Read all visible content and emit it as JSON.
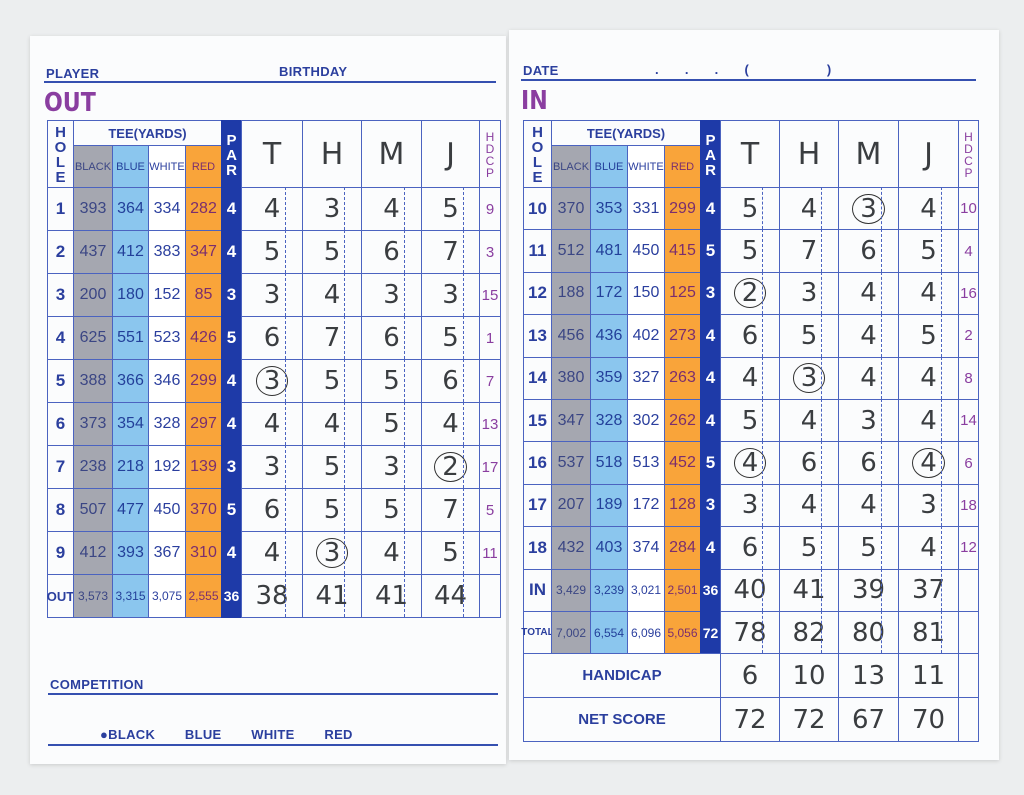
{
  "left": {
    "player_label": "PLAYER",
    "birthday_label": "BIRTHDAY",
    "section_title": "OUT",
    "competition_label": "COMPETITION",
    "tees_legend": {
      "dot": "●",
      "items": [
        "BLACK",
        "BLUE",
        "WHITE",
        "RED"
      ]
    }
  },
  "right": {
    "date_label": "DATE",
    "date_format": ". . . (   )",
    "section_title": "IN",
    "handicap_label": "HANDICAP",
    "net_label": "NET SCORE"
  },
  "headers": {
    "hole": "HOLE",
    "tee": "TEE(YARDS)",
    "tees": [
      "BLACK",
      "BLUE",
      "WHITE",
      "RED"
    ],
    "par": "PAR",
    "hdcp": "HDCP"
  },
  "players": [
    "T",
    "H",
    "M",
    "J"
  ],
  "front": [
    {
      "hole": "1",
      "yards": [
        "393",
        "364",
        "334",
        "282"
      ],
      "par": "4",
      "scores": [
        "4",
        "3",
        "4",
        "5"
      ],
      "circled": [
        false,
        false,
        false,
        false
      ],
      "hdcp": "9"
    },
    {
      "hole": "2",
      "yards": [
        "437",
        "412",
        "383",
        "347"
      ],
      "par": "4",
      "scores": [
        "5",
        "5",
        "6",
        "7"
      ],
      "circled": [
        false,
        false,
        false,
        false
      ],
      "hdcp": "3"
    },
    {
      "hole": "3",
      "yards": [
        "200",
        "180",
        "152",
        "85"
      ],
      "par": "3",
      "scores": [
        "3",
        "4",
        "3",
        "3"
      ],
      "circled": [
        false,
        false,
        false,
        false
      ],
      "hdcp": "15"
    },
    {
      "hole": "4",
      "yards": [
        "625",
        "551",
        "523",
        "426"
      ],
      "par": "5",
      "scores": [
        "6",
        "7",
        "6",
        "5"
      ],
      "circled": [
        false,
        false,
        false,
        false
      ],
      "hdcp": "1"
    },
    {
      "hole": "5",
      "yards": [
        "388",
        "366",
        "346",
        "299"
      ],
      "par": "4",
      "scores": [
        "3",
        "5",
        "5",
        "6"
      ],
      "circled": [
        true,
        false,
        false,
        false
      ],
      "hdcp": "7"
    },
    {
      "hole": "6",
      "yards": [
        "373",
        "354",
        "328",
        "297"
      ],
      "par": "4",
      "scores": [
        "4",
        "4",
        "5",
        "4"
      ],
      "circled": [
        false,
        false,
        false,
        false
      ],
      "hdcp": "13"
    },
    {
      "hole": "7",
      "yards": [
        "238",
        "218",
        "192",
        "139"
      ],
      "par": "3",
      "scores": [
        "3",
        "5",
        "3",
        "2"
      ],
      "circled": [
        false,
        false,
        false,
        true
      ],
      "hdcp": "17"
    },
    {
      "hole": "8",
      "yards": [
        "507",
        "477",
        "450",
        "370"
      ],
      "par": "5",
      "scores": [
        "6",
        "5",
        "5",
        "7"
      ],
      "circled": [
        false,
        false,
        false,
        false
      ],
      "hdcp": "5"
    },
    {
      "hole": "9",
      "yards": [
        "412",
        "393",
        "367",
        "310"
      ],
      "par": "4",
      "scores": [
        "4",
        "3",
        "4",
        "5"
      ],
      "circled": [
        false,
        true,
        false,
        false
      ],
      "hdcp": "11"
    },
    {
      "hole": "OUT",
      "yards": [
        "3,573",
        "3,315",
        "3,075",
        "2,555"
      ],
      "par": "36",
      "scores": [
        "38",
        "41",
        "41",
        "44"
      ],
      "circled": [
        false,
        false,
        false,
        false
      ],
      "hdcp": ""
    }
  ],
  "back": [
    {
      "hole": "10",
      "yards": [
        "370",
        "353",
        "331",
        "299"
      ],
      "par": "4",
      "scores": [
        "5",
        "4",
        "3",
        "4"
      ],
      "circled": [
        false,
        false,
        true,
        false
      ],
      "hdcp": "10"
    },
    {
      "hole": "11",
      "yards": [
        "512",
        "481",
        "450",
        "415"
      ],
      "par": "5",
      "scores": [
        "5",
        "7",
        "6",
        "5"
      ],
      "circled": [
        false,
        false,
        false,
        false
      ],
      "hdcp": "4"
    },
    {
      "hole": "12",
      "yards": [
        "188",
        "172",
        "150",
        "125"
      ],
      "par": "3",
      "scores": [
        "2",
        "3",
        "4",
        "4"
      ],
      "circled": [
        true,
        false,
        false,
        false
      ],
      "hdcp": "16"
    },
    {
      "hole": "13",
      "yards": [
        "456",
        "436",
        "402",
        "273"
      ],
      "par": "4",
      "scores": [
        "6",
        "5",
        "4",
        "5"
      ],
      "circled": [
        false,
        false,
        false,
        false
      ],
      "hdcp": "2"
    },
    {
      "hole": "14",
      "yards": [
        "380",
        "359",
        "327",
        "263"
      ],
      "par": "4",
      "scores": [
        "4",
        "3",
        "4",
        "4"
      ],
      "circled": [
        false,
        true,
        false,
        false
      ],
      "hdcp": "8"
    },
    {
      "hole": "15",
      "yards": [
        "347",
        "328",
        "302",
        "262"
      ],
      "par": "4",
      "scores": [
        "5",
        "4",
        "3",
        "4"
      ],
      "circled": [
        false,
        false,
        false,
        false
      ],
      "hdcp": "14"
    },
    {
      "hole": "16",
      "yards": [
        "537",
        "518",
        "513",
        "452"
      ],
      "par": "5",
      "scores": [
        "4",
        "6",
        "6",
        "4"
      ],
      "circled": [
        true,
        false,
        false,
        true
      ],
      "hdcp": "6"
    },
    {
      "hole": "17",
      "yards": [
        "207",
        "189",
        "172",
        "128"
      ],
      "par": "3",
      "scores": [
        "3",
        "4",
        "4",
        "3"
      ],
      "circled": [
        false,
        false,
        false,
        false
      ],
      "hdcp": "18"
    },
    {
      "hole": "18",
      "yards": [
        "432",
        "403",
        "374",
        "284"
      ],
      "par": "4",
      "scores": [
        "6",
        "5",
        "5",
        "4"
      ],
      "circled": [
        false,
        false,
        false,
        false
      ],
      "hdcp": "12"
    },
    {
      "hole": "IN",
      "yards": [
        "3,429",
        "3,239",
        "3,021",
        "2,501"
      ],
      "par": "36",
      "scores": [
        "40",
        "41",
        "39",
        "37"
      ],
      "circled": [
        false,
        false,
        false,
        false
      ],
      "hdcp": ""
    },
    {
      "hole": "TOTAL",
      "yards": [
        "7,002",
        "6,554",
        "6,096",
        "5,056"
      ],
      "par": "72",
      "scores": [
        "78",
        "82",
        "80",
        "81"
      ],
      "circled": [
        false,
        false,
        false,
        false
      ],
      "hdcp": ""
    }
  ],
  "handicaps": [
    "6",
    "10",
    "13",
    "11"
  ],
  "net_scores": [
    "72",
    "72",
    "67",
    "70"
  ],
  "colors": {
    "ink": "#2b3f9e",
    "accent": "#8a3ea0",
    "black_tee": "#a5a7b0",
    "blue_tee": "#8bc6ee",
    "red_tee": "#f9a43a",
    "par": "#1e3aa8"
  }
}
